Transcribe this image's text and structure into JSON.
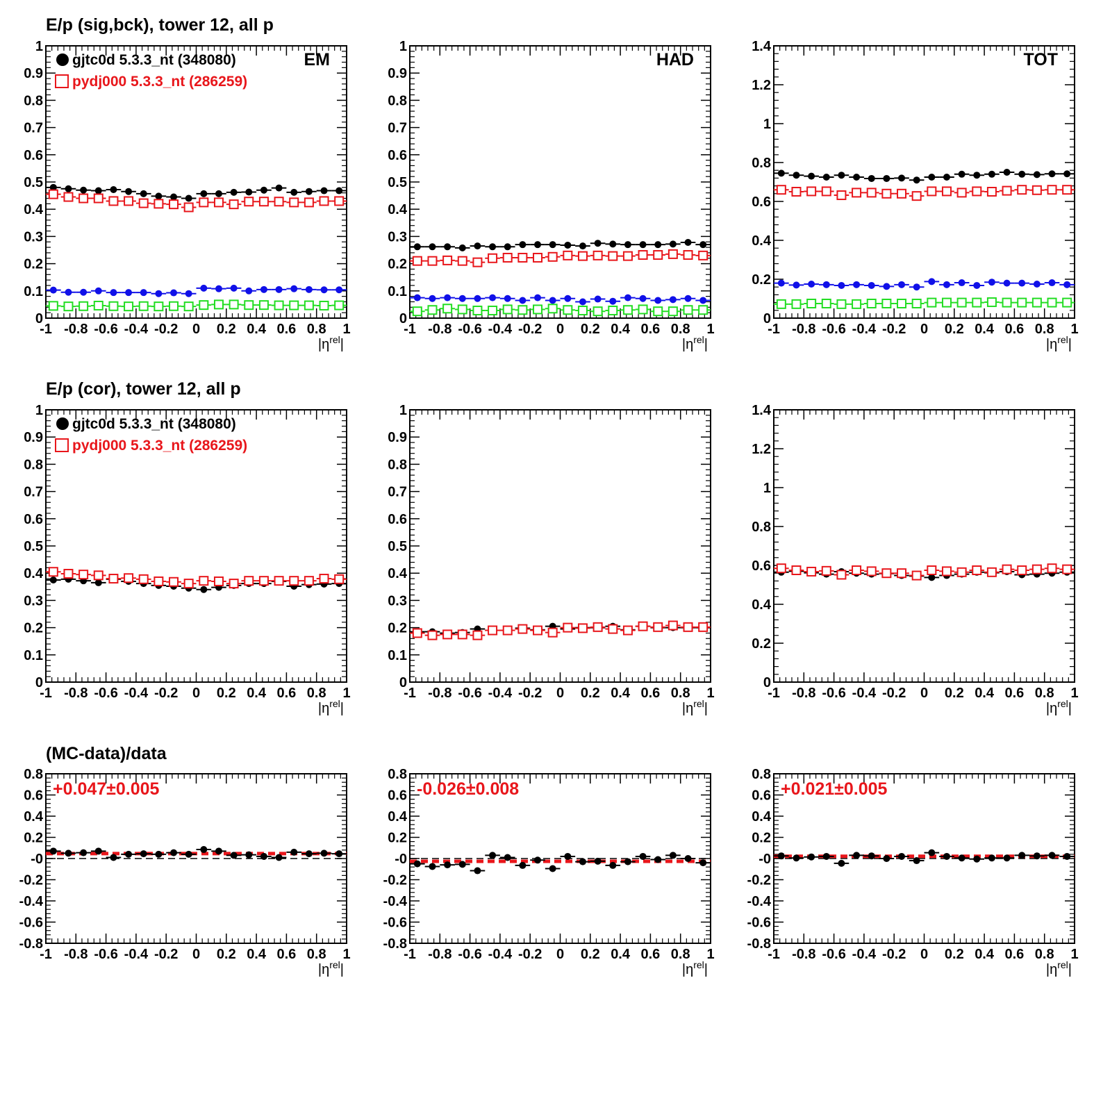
{
  "row_titles": [
    "E/p (sig,bck), tower 12, all p",
    "E/p (cor), tower 12, all p",
    "(MC-data)/data"
  ],
  "colors": {
    "data": "#000000",
    "mc": "#e8161b",
    "sig": "#1010e8",
    "bck": "#22dd22",
    "fit": "#e8161b"
  },
  "legend": {
    "data": "gjtc0d 5.3.3_nt (348080)",
    "mc": "pydj000 5.3.3_nt (286259)"
  },
  "chart_data": [
    {
      "id": "sigbck-em",
      "type": "scatter",
      "panel_label": "EM",
      "xlabel": "|η^rel|",
      "xlim": [
        -1,
        1
      ],
      "ylim": [
        0,
        1
      ],
      "xticks": [
        "-1",
        "-0.8",
        "-0.6",
        "-0.4",
        "-0.2",
        "0",
        "0.2",
        "0.4",
        "0.6",
        "0.8",
        "1"
      ],
      "yticks": [
        "0",
        "0.1",
        "0.2",
        "0.3",
        "0.4",
        "0.5",
        "0.6",
        "0.7",
        "0.8",
        "0.9",
        "1"
      ],
      "x": [
        -0.95,
        -0.85,
        -0.75,
        -0.65,
        -0.55,
        -0.45,
        -0.35,
        -0.25,
        -0.15,
        -0.05,
        0.05,
        0.15,
        0.25,
        0.35,
        0.45,
        0.55,
        0.65,
        0.75,
        0.85,
        0.95
      ],
      "series": [
        {
          "key": "data",
          "marker": "filled-circle",
          "values": [
            0.48,
            0.475,
            0.47,
            0.468,
            0.472,
            0.465,
            0.457,
            0.448,
            0.445,
            0.44,
            0.457,
            0.457,
            0.462,
            0.463,
            0.47,
            0.478,
            0.462,
            0.465,
            0.468,
            0.468
          ]
        },
        {
          "key": "mc",
          "marker": "open-square",
          "values": [
            0.455,
            0.445,
            0.44,
            0.44,
            0.43,
            0.43,
            0.422,
            0.42,
            0.418,
            0.407,
            0.425,
            0.425,
            0.418,
            0.428,
            0.428,
            0.428,
            0.425,
            0.425,
            0.43,
            0.43
          ]
        },
        {
          "key": "sig",
          "marker": "filled-circle",
          "values": [
            0.103,
            0.095,
            0.095,
            0.1,
            0.094,
            0.094,
            0.094,
            0.09,
            0.093,
            0.09,
            0.11,
            0.108,
            0.11,
            0.1,
            0.105,
            0.105,
            0.108,
            0.105,
            0.104,
            0.104
          ]
        },
        {
          "key": "bck",
          "marker": "open-square",
          "values": [
            0.045,
            0.043,
            0.044,
            0.046,
            0.044,
            0.043,
            0.044,
            0.043,
            0.044,
            0.043,
            0.048,
            0.05,
            0.05,
            0.048,
            0.048,
            0.047,
            0.047,
            0.047,
            0.046,
            0.047
          ]
        }
      ]
    },
    {
      "id": "sigbck-had",
      "type": "scatter",
      "panel_label": "HAD",
      "xlabel": "|η^rel|",
      "xlim": [
        -1,
        1
      ],
      "ylim": [
        0,
        1
      ],
      "xticks": [
        "-1",
        "-0.8",
        "-0.6",
        "-0.4",
        "-0.2",
        "0",
        "0.2",
        "0.4",
        "0.6",
        "0.8",
        "1"
      ],
      "yticks": [
        "0",
        "0.1",
        "0.2",
        "0.3",
        "0.4",
        "0.5",
        "0.6",
        "0.7",
        "0.8",
        "0.9",
        "1"
      ],
      "x": [
        -0.95,
        -0.85,
        -0.75,
        -0.65,
        -0.55,
        -0.45,
        -0.35,
        -0.25,
        -0.15,
        -0.05,
        0.05,
        0.15,
        0.25,
        0.35,
        0.45,
        0.55,
        0.65,
        0.75,
        0.85,
        0.95
      ],
      "series": [
        {
          "key": "data",
          "marker": "filled-circle",
          "values": [
            0.262,
            0.262,
            0.262,
            0.258,
            0.265,
            0.262,
            0.262,
            0.27,
            0.27,
            0.27,
            0.268,
            0.265,
            0.275,
            0.272,
            0.27,
            0.27,
            0.27,
            0.272,
            0.278,
            0.27
          ]
        },
        {
          "key": "mc",
          "marker": "open-square",
          "values": [
            0.21,
            0.21,
            0.212,
            0.21,
            0.205,
            0.22,
            0.222,
            0.222,
            0.222,
            0.225,
            0.23,
            0.228,
            0.23,
            0.228,
            0.228,
            0.232,
            0.232,
            0.235,
            0.232,
            0.23
          ]
        },
        {
          "key": "sig",
          "marker": "filled-circle",
          "values": [
            0.075,
            0.072,
            0.075,
            0.072,
            0.072,
            0.075,
            0.072,
            0.065,
            0.075,
            0.065,
            0.072,
            0.06,
            0.07,
            0.062,
            0.075,
            0.072,
            0.065,
            0.068,
            0.072,
            0.065
          ]
        },
        {
          "key": "bck",
          "marker": "open-square",
          "values": [
            0.025,
            0.03,
            0.035,
            0.032,
            0.028,
            0.028,
            0.032,
            0.03,
            0.032,
            0.035,
            0.03,
            0.028,
            0.025,
            0.028,
            0.03,
            0.032,
            0.025,
            0.025,
            0.03,
            0.03
          ]
        }
      ]
    },
    {
      "id": "sigbck-tot",
      "type": "scatter",
      "panel_label": "TOT",
      "xlabel": "|η^rel|",
      "xlim": [
        -1,
        1
      ],
      "ylim": [
        0,
        1.4
      ],
      "xticks": [
        "-1",
        "-0.8",
        "-0.6",
        "-0.4",
        "-0.2",
        "0",
        "0.2",
        "0.4",
        "0.6",
        "0.8",
        "1"
      ],
      "yticks": [
        "0",
        "0.2",
        "0.4",
        "0.6",
        "0.8",
        "1",
        "1.2",
        "1.4"
      ],
      "x": [
        -0.95,
        -0.85,
        -0.75,
        -0.65,
        -0.55,
        -0.45,
        -0.35,
        -0.25,
        -0.15,
        -0.05,
        0.05,
        0.15,
        0.25,
        0.35,
        0.45,
        0.55,
        0.65,
        0.75,
        0.85,
        0.95
      ],
      "series": [
        {
          "key": "data",
          "marker": "filled-circle",
          "values": [
            0.745,
            0.735,
            0.73,
            0.725,
            0.735,
            0.725,
            0.718,
            0.718,
            0.72,
            0.71,
            0.725,
            0.725,
            0.74,
            0.735,
            0.74,
            0.75,
            0.74,
            0.738,
            0.742,
            0.742
          ]
        },
        {
          "key": "mc",
          "marker": "open-square",
          "values": [
            0.66,
            0.65,
            0.652,
            0.652,
            0.632,
            0.645,
            0.645,
            0.64,
            0.64,
            0.628,
            0.652,
            0.652,
            0.645,
            0.652,
            0.65,
            0.655,
            0.66,
            0.658,
            0.66,
            0.66
          ]
        },
        {
          "key": "sig",
          "marker": "filled-circle",
          "values": [
            0.18,
            0.17,
            0.175,
            0.172,
            0.168,
            0.172,
            0.168,
            0.163,
            0.172,
            0.16,
            0.188,
            0.172,
            0.182,
            0.168,
            0.185,
            0.18,
            0.18,
            0.175,
            0.182,
            0.172
          ]
        },
        {
          "key": "bck",
          "marker": "open-square",
          "values": [
            0.072,
            0.072,
            0.075,
            0.075,
            0.072,
            0.072,
            0.075,
            0.075,
            0.075,
            0.075,
            0.08,
            0.08,
            0.08,
            0.08,
            0.082,
            0.08,
            0.08,
            0.08,
            0.08,
            0.08
          ]
        }
      ]
    },
    {
      "id": "cor-em",
      "type": "scatter",
      "panel_label": "",
      "xlabel": "|η^rel|",
      "xlim": [
        -1,
        1
      ],
      "ylim": [
        0,
        1
      ],
      "xticks": [
        "-1",
        "-0.8",
        "-0.6",
        "-0.4",
        "-0.2",
        "0",
        "0.2",
        "0.4",
        "0.6",
        "0.8",
        "1"
      ],
      "yticks": [
        "0",
        "0.1",
        "0.2",
        "0.3",
        "0.4",
        "0.5",
        "0.6",
        "0.7",
        "0.8",
        "0.9",
        "1"
      ],
      "x": [
        -0.95,
        -0.85,
        -0.75,
        -0.65,
        -0.55,
        -0.45,
        -0.35,
        -0.25,
        -0.15,
        -0.05,
        0.05,
        0.15,
        0.25,
        0.35,
        0.45,
        0.55,
        0.65,
        0.75,
        0.85,
        0.95
      ],
      "series": [
        {
          "key": "data",
          "marker": "filled-circle",
          "values": [
            0.375,
            0.378,
            0.372,
            0.365,
            0.378,
            0.37,
            0.362,
            0.355,
            0.352,
            0.345,
            0.34,
            0.348,
            0.355,
            0.362,
            0.362,
            0.37,
            0.352,
            0.358,
            0.36,
            0.362
          ]
        },
        {
          "key": "mc",
          "marker": "open-square",
          "values": [
            0.405,
            0.398,
            0.395,
            0.392,
            0.38,
            0.382,
            0.378,
            0.37,
            0.368,
            0.362,
            0.372,
            0.37,
            0.362,
            0.372,
            0.372,
            0.372,
            0.372,
            0.372,
            0.38,
            0.378
          ]
        }
      ]
    },
    {
      "id": "cor-had",
      "type": "scatter",
      "panel_label": "",
      "xlabel": "|η^rel|",
      "xlim": [
        -1,
        1
      ],
      "ylim": [
        0,
        1
      ],
      "xticks": [
        "-1",
        "-0.8",
        "-0.6",
        "-0.4",
        "-0.2",
        "0",
        "0.2",
        "0.4",
        "0.6",
        "0.8",
        "1"
      ],
      "yticks": [
        "0",
        "0.1",
        "0.2",
        "0.3",
        "0.4",
        "0.5",
        "0.6",
        "0.7",
        "0.8",
        "0.9",
        "1"
      ],
      "x": [
        -0.95,
        -0.85,
        -0.75,
        -0.65,
        -0.55,
        -0.45,
        -0.35,
        -0.25,
        -0.15,
        -0.05,
        0.05,
        0.15,
        0.25,
        0.35,
        0.45,
        0.55,
        0.65,
        0.75,
        0.85,
        0.95
      ],
      "series": [
        {
          "key": "data",
          "marker": "filled-circle",
          "values": [
            0.185,
            0.185,
            0.18,
            0.182,
            0.195,
            0.19,
            0.19,
            0.198,
            0.192,
            0.205,
            0.195,
            0.2,
            0.2,
            0.205,
            0.192,
            0.205,
            0.2,
            0.2,
            0.2,
            0.2
          ]
        },
        {
          "key": "mc",
          "marker": "open-square",
          "values": [
            0.18,
            0.172,
            0.175,
            0.175,
            0.172,
            0.19,
            0.19,
            0.195,
            0.19,
            0.182,
            0.2,
            0.198,
            0.202,
            0.195,
            0.19,
            0.205,
            0.202,
            0.208,
            0.202,
            0.202
          ]
        }
      ]
    },
    {
      "id": "cor-tot",
      "type": "scatter",
      "panel_label": "",
      "xlabel": "|η^rel|",
      "xlim": [
        -1,
        1
      ],
      "ylim": [
        0,
        1.4
      ],
      "xticks": [
        "-1",
        "-0.8",
        "-0.6",
        "-0.4",
        "-0.2",
        "0",
        "0.2",
        "0.4",
        "0.6",
        "0.8",
        "1"
      ],
      "yticks": [
        "0",
        "0.2",
        "0.4",
        "0.6",
        "0.8",
        "1",
        "1.2",
        "1.4"
      ],
      "x": [
        -0.95,
        -0.85,
        -0.75,
        -0.65,
        -0.55,
        -0.45,
        -0.35,
        -0.25,
        -0.15,
        -0.05,
        0.05,
        0.15,
        0.25,
        0.35,
        0.45,
        0.55,
        0.65,
        0.75,
        0.85,
        0.95
      ],
      "series": [
        {
          "key": "data",
          "marker": "filled-circle",
          "values": [
            0.565,
            0.57,
            0.562,
            0.555,
            0.568,
            0.56,
            0.555,
            0.558,
            0.548,
            0.545,
            0.538,
            0.548,
            0.555,
            0.565,
            0.562,
            0.568,
            0.552,
            0.555,
            0.56,
            0.565
          ]
        },
        {
          "key": "mc",
          "marker": "open-square",
          "values": [
            0.585,
            0.575,
            0.568,
            0.572,
            0.552,
            0.575,
            0.57,
            0.56,
            0.56,
            0.548,
            0.575,
            0.57,
            0.565,
            0.575,
            0.565,
            0.58,
            0.575,
            0.58,
            0.585,
            0.58
          ]
        }
      ]
    },
    {
      "id": "ratio-em",
      "type": "scatter",
      "panel_label": "",
      "fit_label": "+0.047±0.005",
      "fit_value": 0.047,
      "zero_line": 0,
      "xlabel": "|η^rel|",
      "xlim": [
        -1,
        1
      ],
      "ylim": [
        -0.8,
        0.8
      ],
      "xticks": [
        "-1",
        "-0.8",
        "-0.6",
        "-0.4",
        "-0.2",
        "0",
        "0.2",
        "0.4",
        "0.6",
        "0.8",
        "1"
      ],
      "yticks": [
        "-0.8",
        "-0.6",
        "-0.4",
        "-0.2",
        "-0",
        "0.2",
        "0.4",
        "0.6",
        "0.8"
      ],
      "x": [
        -0.95,
        -0.85,
        -0.75,
        -0.65,
        -0.55,
        -0.45,
        -0.35,
        -0.25,
        -0.15,
        -0.05,
        0.05,
        0.15,
        0.25,
        0.35,
        0.45,
        0.55,
        0.65,
        0.75,
        0.85,
        0.95
      ],
      "series": [
        {
          "key": "data",
          "marker": "filled-circle",
          "values": [
            0.07,
            0.05,
            0.055,
            0.07,
            0.01,
            0.04,
            0.045,
            0.04,
            0.055,
            0.04,
            0.085,
            0.07,
            0.03,
            0.035,
            0.02,
            0.01,
            0.06,
            0.045,
            0.05,
            0.045
          ]
        }
      ]
    },
    {
      "id": "ratio-had",
      "type": "scatter",
      "panel_label": "",
      "fit_label": "-0.026±0.008",
      "fit_value": -0.026,
      "zero_line": 0,
      "xlabel": "|η^rel|",
      "xlim": [
        -1,
        1
      ],
      "ylim": [
        -0.8,
        0.8
      ],
      "xticks": [
        "-1",
        "-0.8",
        "-0.6",
        "-0.4",
        "-0.2",
        "0",
        "0.2",
        "0.4",
        "0.6",
        "0.8",
        "1"
      ],
      "yticks": [
        "-0.8",
        "-0.6",
        "-0.4",
        "-0.2",
        "-0",
        "0.2",
        "0.4",
        "0.6",
        "0.8"
      ],
      "x": [
        -0.95,
        -0.85,
        -0.75,
        -0.65,
        -0.55,
        -0.45,
        -0.35,
        -0.25,
        -0.15,
        -0.05,
        0.05,
        0.15,
        0.25,
        0.35,
        0.45,
        0.55,
        0.65,
        0.75,
        0.85,
        0.95
      ],
      "series": [
        {
          "key": "data",
          "marker": "filled-circle",
          "values": [
            -0.05,
            -0.075,
            -0.06,
            -0.055,
            -0.115,
            0.03,
            0.01,
            -0.065,
            -0.015,
            -0.095,
            0.02,
            -0.03,
            -0.025,
            -0.065,
            -0.03,
            0.02,
            -0.01,
            0.03,
            0.0,
            -0.04
          ]
        }
      ]
    },
    {
      "id": "ratio-tot",
      "type": "scatter",
      "panel_label": "",
      "fit_label": "+0.021±0.005",
      "fit_value": 0.021,
      "zero_line": 0,
      "xlabel": "|η^rel|",
      "xlim": [
        -1,
        1
      ],
      "ylim": [
        -0.8,
        0.8
      ],
      "xticks": [
        "-1",
        "-0.8",
        "-0.6",
        "-0.4",
        "-0.2",
        "0",
        "0.2",
        "0.4",
        "0.6",
        "0.8",
        "1"
      ],
      "yticks": [
        "-0.8",
        "-0.6",
        "-0.4",
        "-0.2",
        "-0",
        "0.2",
        "0.4",
        "0.6",
        "0.8"
      ],
      "x": [
        -0.95,
        -0.85,
        -0.75,
        -0.65,
        -0.55,
        -0.45,
        -0.35,
        -0.25,
        -0.15,
        -0.05,
        0.05,
        0.15,
        0.25,
        0.35,
        0.45,
        0.55,
        0.65,
        0.75,
        0.85,
        0.95
      ],
      "series": [
        {
          "key": "data",
          "marker": "filled-circle",
          "values": [
            0.025,
            0.005,
            0.015,
            0.02,
            -0.045,
            0.03,
            0.025,
            0.0,
            0.02,
            -0.02,
            0.055,
            0.02,
            0.005,
            -0.005,
            0.005,
            0.005,
            0.03,
            0.025,
            0.03,
            0.02
          ]
        }
      ]
    }
  ]
}
